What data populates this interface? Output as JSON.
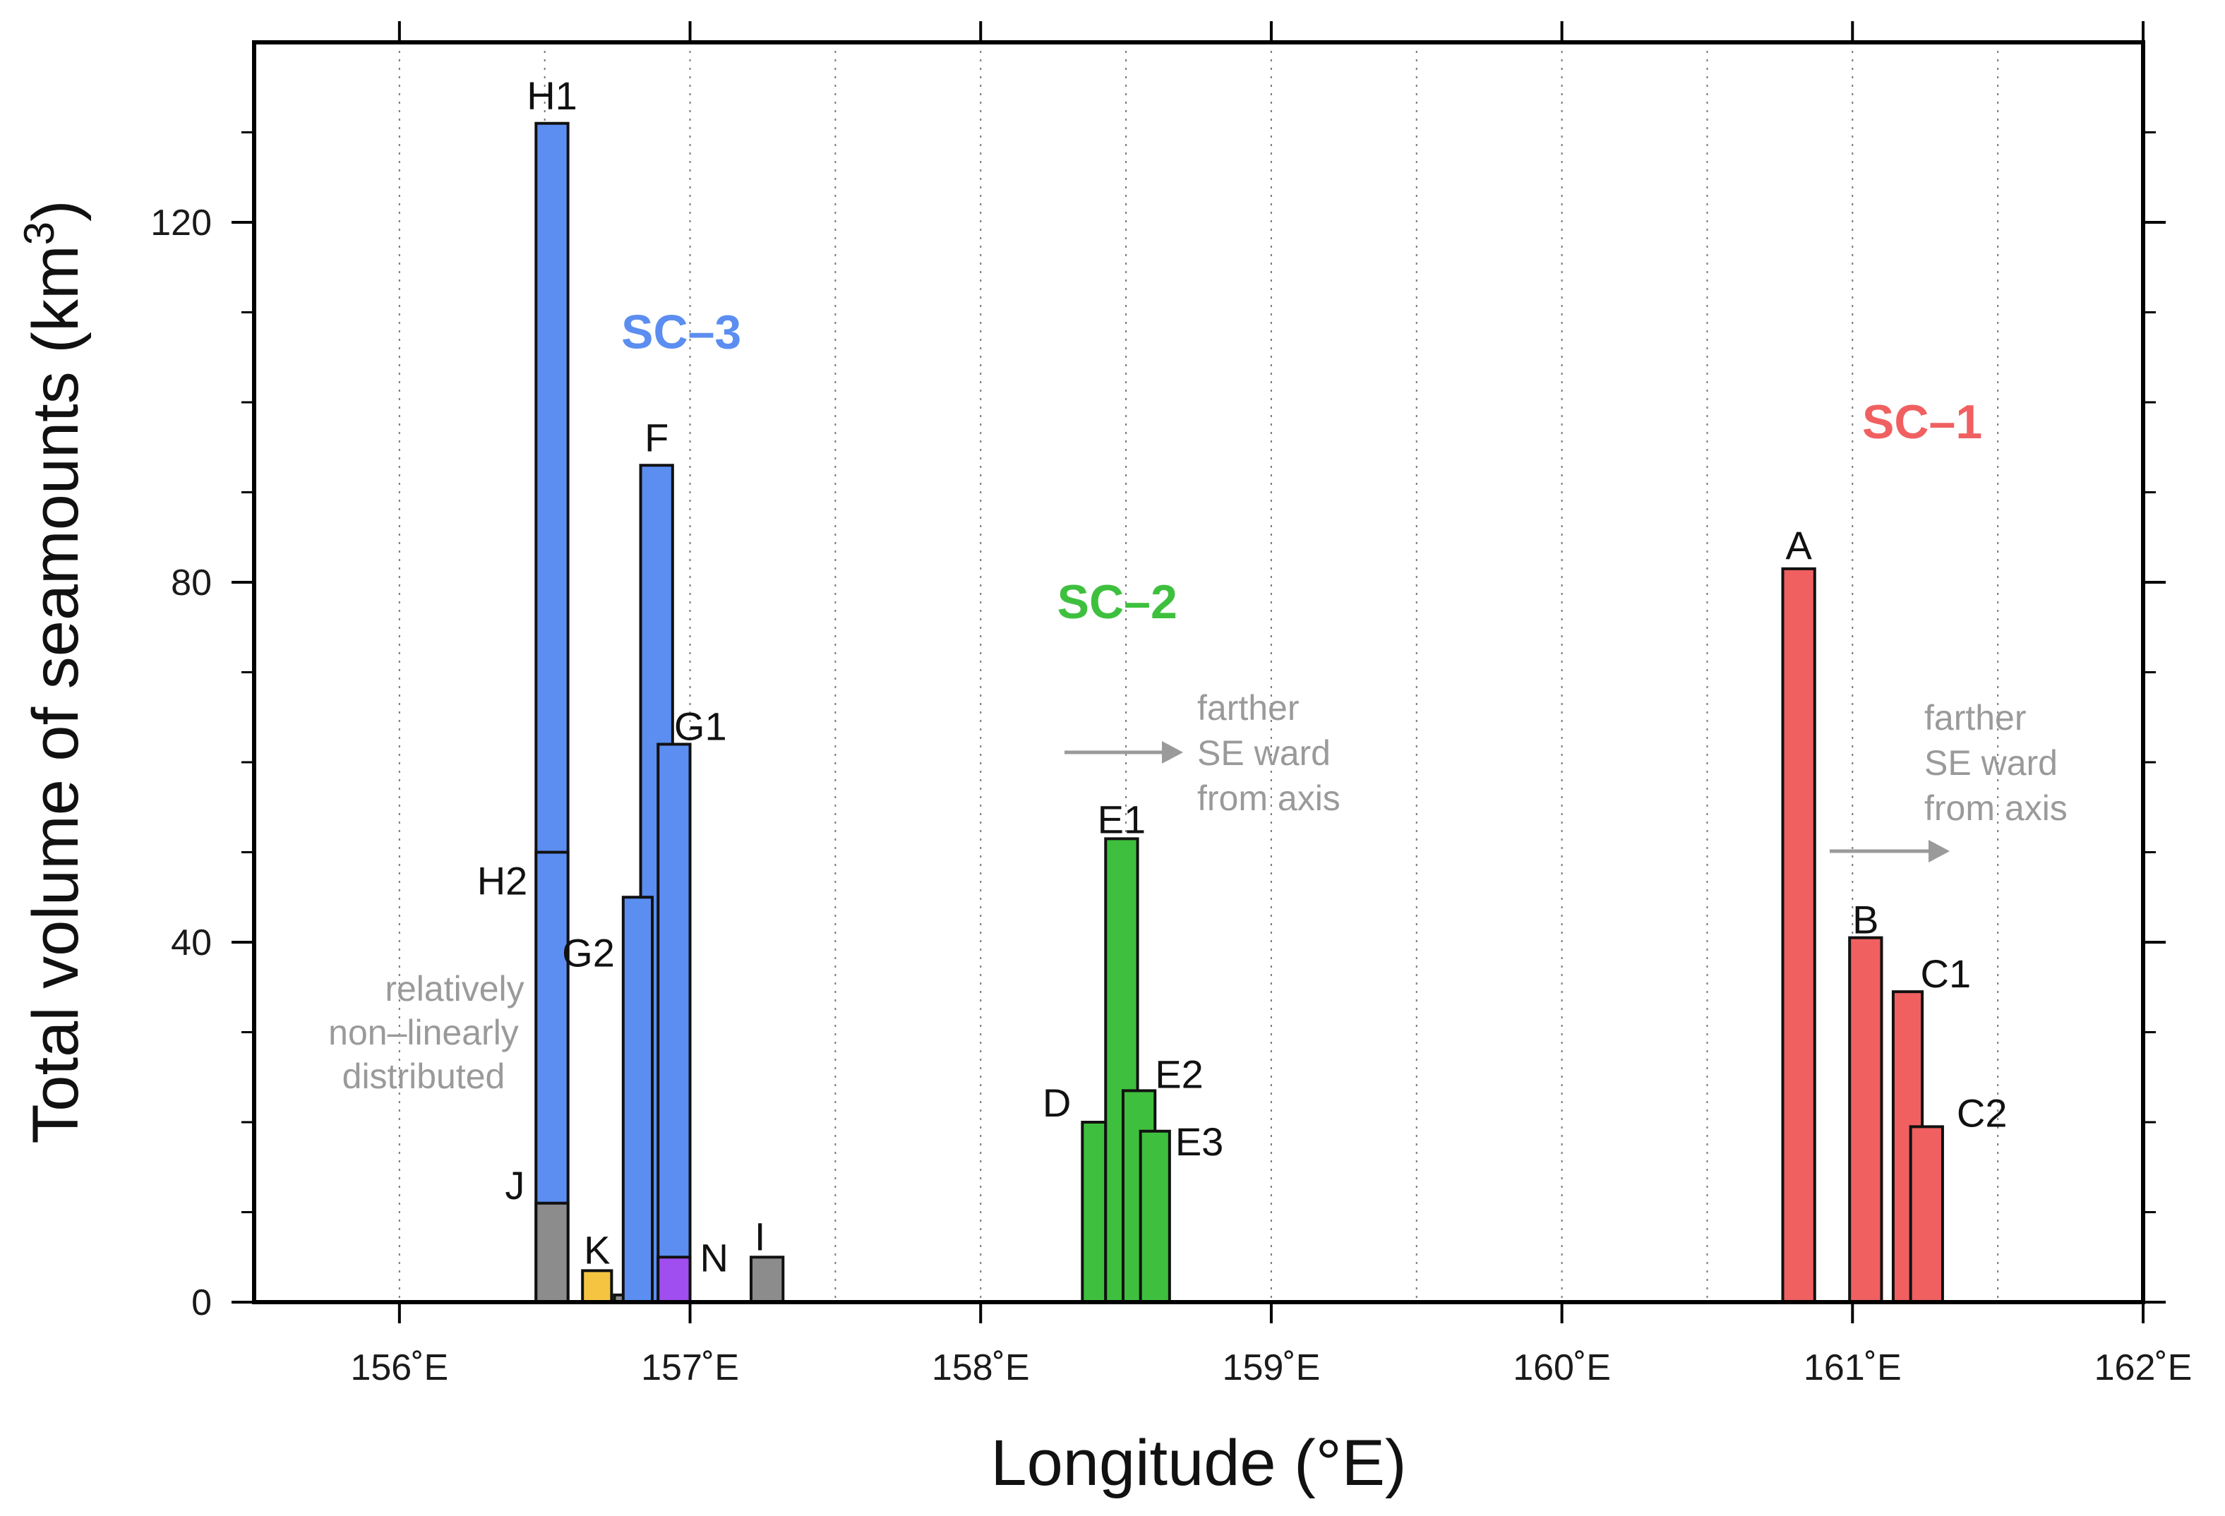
{
  "chart_data": {
    "type": "bar",
    "xlabel": "Longitude (°E)",
    "ylabel_main": "Total volume of seamounts (km",
    "ylabel_sup": "3",
    "ylabel_close": ")",
    "xlim": [
      155.5,
      162.0
    ],
    "ylim": [
      0,
      140
    ],
    "x_ticks": [
      156,
      157,
      158,
      159,
      160,
      161,
      162
    ],
    "x_tick_labels": [
      "156˚E",
      "157˚E",
      "158˚E",
      "159˚E",
      "160˚E",
      "161˚E",
      "162˚E"
    ],
    "x_minor_grid": [
      156.5,
      157.5,
      158.5,
      159.5,
      160.5,
      161.5
    ],
    "y_ticks": [
      0,
      40,
      80,
      120
    ],
    "y_tick_labels": [
      "0",
      "40",
      "80",
      "120"
    ],
    "y_minor_ticks": [
      10,
      20,
      30,
      50,
      60,
      70,
      90,
      100,
      110,
      130
    ],
    "grid": "vertical dotted",
    "colors": {
      "SC-1": "#f06060",
      "SC-2": "#3ec03e",
      "SC-3": "#5b8ef0",
      "gray": "#8c8c8c",
      "yellow": "#f5c542",
      "purple": "#a04ef0",
      "note": "#9a9a9a"
    },
    "bars": [
      {
        "label": "H1",
        "x0": 156.47,
        "x1": 156.58,
        "value": 131,
        "color": "SC-3"
      },
      {
        "label": "H2",
        "x0": 156.47,
        "x1": 156.58,
        "value": 50,
        "color": "SC-3"
      },
      {
        "label": "J",
        "x0": 156.47,
        "x1": 156.58,
        "value": 11,
        "color": "gray"
      },
      {
        "label": "K",
        "x0": 156.63,
        "x1": 156.73,
        "value": 3.5,
        "color": "yellow"
      },
      {
        "label": "",
        "x0": 156.74,
        "x1": 156.86,
        "value": 0.8,
        "color": "gray"
      },
      {
        "label": "F",
        "x0": 156.83,
        "x1": 156.94,
        "value": 93,
        "color": "SC-3"
      },
      {
        "label": "G2",
        "x0": 156.77,
        "x1": 156.87,
        "value": 45,
        "color": "SC-3"
      },
      {
        "label": "G1",
        "x0": 156.89,
        "x1": 157.0,
        "value": 62,
        "color": "SC-3"
      },
      {
        "label": "N",
        "x0": 156.89,
        "x1": 157.0,
        "value": 5,
        "color": "purple"
      },
      {
        "label": "I",
        "x0": 157.21,
        "x1": 157.32,
        "value": 5,
        "color": "gray"
      },
      {
        "label": "D",
        "x0": 158.35,
        "x1": 158.43,
        "value": 20,
        "color": "SC-2"
      },
      {
        "label": "E1",
        "x0": 158.43,
        "x1": 158.54,
        "value": 51.5,
        "color": "SC-2"
      },
      {
        "label": "E2",
        "x0": 158.49,
        "x1": 158.6,
        "value": 23.5,
        "color": "SC-2"
      },
      {
        "label": "E3",
        "x0": 158.55,
        "x1": 158.65,
        "value": 19,
        "color": "SC-2"
      },
      {
        "label": "A",
        "x0": 160.76,
        "x1": 160.87,
        "value": 81.5,
        "color": "SC-1"
      },
      {
        "label": "B",
        "x0": 160.99,
        "x1": 161.1,
        "value": 40.5,
        "color": "SC-1"
      },
      {
        "label": "C1",
        "x0": 161.14,
        "x1": 161.24,
        "value": 34.5,
        "color": "SC-1"
      },
      {
        "label": "C2",
        "x0": 161.2,
        "x1": 161.31,
        "value": 19.5,
        "color": "SC-1"
      }
    ],
    "groups": [
      {
        "label": "SC–3",
        "x": 156.97,
        "y": 106,
        "color": "SC-3"
      },
      {
        "label": "SC–2",
        "x": 158.47,
        "y": 76,
        "color": "SC-2"
      },
      {
        "label": "SC–1",
        "x": 161.24,
        "y": 96,
        "color": "SC-1"
      }
    ],
    "annotations": {
      "note_sc3": [
        "relatively",
        "non–linearly",
        "distributed"
      ],
      "note_sc2": [
        "farther",
        "SE ward",
        "from axis"
      ],
      "note_sc1": [
        "farther",
        "SE ward",
        "from axis"
      ]
    }
  }
}
